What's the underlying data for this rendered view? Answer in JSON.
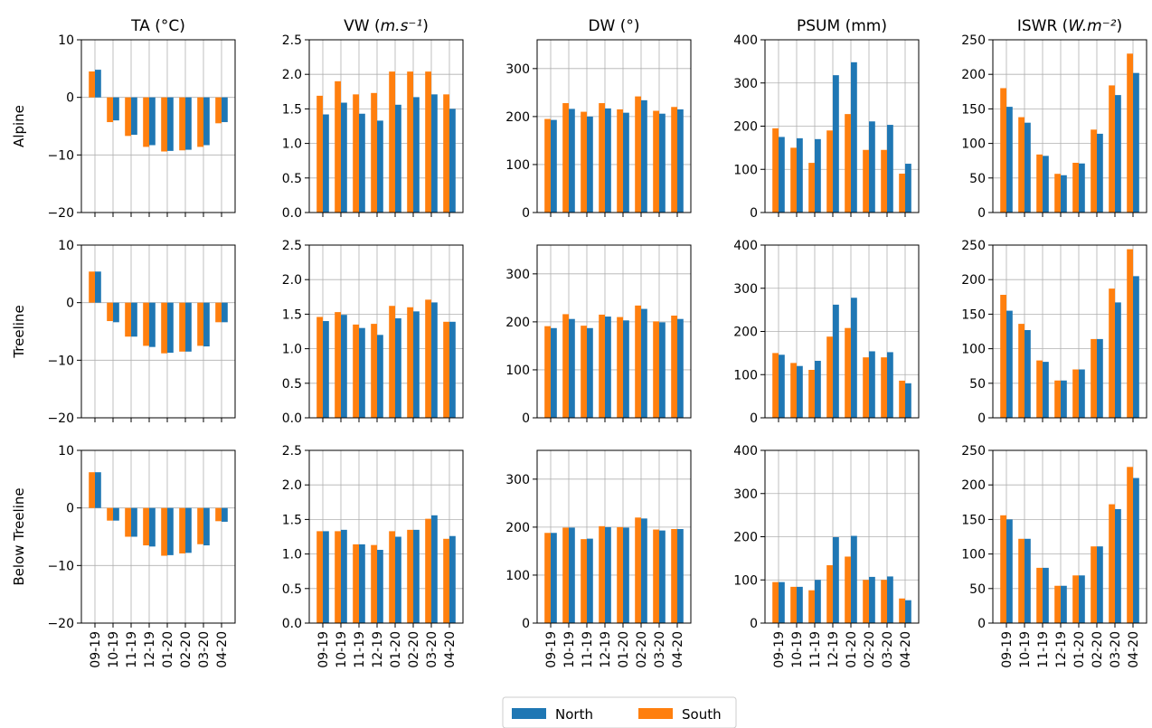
{
  "figure": {
    "row_labels": [
      "Alpine",
      "Treeline",
      "Below Treeline"
    ],
    "legend": {
      "entries": [
        {
          "name": "North",
          "color": "#1f77b4"
        },
        {
          "name": "South",
          "color": "#ff7f0e"
        }
      ],
      "placement": "bottom-center"
    }
  },
  "chart_data": [
    {
      "type": "bar",
      "variable": "TA",
      "title_main": "TA (°C)",
      "title_unit": "",
      "row": "Alpine",
      "categories": [
        "09-19",
        "10-19",
        "11-19",
        "12-19",
        "01-20",
        "02-20",
        "03-20",
        "04-20"
      ],
      "series": [
        {
          "name": "North",
          "values": [
            4.8,
            -4.0,
            -6.5,
            -8.3,
            -9.3,
            -9.1,
            -8.3,
            -4.3
          ]
        },
        {
          "name": "South",
          "values": [
            4.5,
            -4.3,
            -6.7,
            -8.6,
            -9.4,
            -9.2,
            -8.6,
            -4.5
          ]
        }
      ],
      "ylim": [
        -20,
        10
      ],
      "yticks": [
        -20,
        -10,
        0,
        10
      ],
      "grid": true,
      "show_xticklabels": false
    },
    {
      "type": "bar",
      "variable": "VW",
      "title_main": "VW (",
      "title_unit": "m.s⁻¹",
      "row": "Alpine",
      "categories": [
        "09-19",
        "10-19",
        "11-19",
        "12-19",
        "01-20",
        "02-20",
        "03-20",
        "04-20"
      ],
      "series": [
        {
          "name": "North",
          "values": [
            1.42,
            1.59,
            1.43,
            1.33,
            1.56,
            1.67,
            1.71,
            1.5
          ]
        },
        {
          "name": "South",
          "values": [
            1.69,
            1.9,
            1.71,
            1.73,
            2.04,
            2.04,
            2.04,
            1.71
          ]
        }
      ],
      "ylim": [
        0,
        2.5
      ],
      "yticks": [
        0,
        0.5,
        1,
        1.5,
        2,
        2.5
      ],
      "grid": true,
      "show_xticklabels": false
    },
    {
      "type": "bar",
      "variable": "DW",
      "title_main": "DW (°)",
      "title_unit": "",
      "row": "Alpine",
      "categories": [
        "09-19",
        "10-19",
        "11-19",
        "12-19",
        "01-20",
        "02-20",
        "03-20",
        "04-20"
      ],
      "series": [
        {
          "name": "North",
          "values": [
            193,
            216,
            200,
            217,
            208,
            234,
            206,
            215
          ]
        },
        {
          "name": "South",
          "values": [
            195,
            228,
            210,
            228,
            215,
            242,
            212,
            220
          ]
        }
      ],
      "ylim": [
        0,
        360
      ],
      "yticks": [
        0,
        100,
        200,
        300
      ],
      "grid": true,
      "show_xticklabels": false
    },
    {
      "type": "bar",
      "variable": "PSUM",
      "title_main": "PSUM (mm)",
      "title_unit": "",
      "row": "Alpine",
      "categories": [
        "09-19",
        "10-19",
        "11-19",
        "12-19",
        "01-20",
        "02-20",
        "03-20",
        "04-20"
      ],
      "series": [
        {
          "name": "North",
          "values": [
            175,
            172,
            170,
            318,
            348,
            211,
            203,
            113
          ]
        },
        {
          "name": "South",
          "values": [
            195,
            150,
            115,
            190,
            228,
            145,
            145,
            90
          ]
        }
      ],
      "ylim": [
        0,
        400
      ],
      "yticks": [
        0,
        100,
        200,
        300,
        400
      ],
      "grid": true,
      "show_xticklabels": false
    },
    {
      "type": "bar",
      "variable": "ISWR",
      "title_main": "ISWR (",
      "title_unit": "W.m⁻²",
      "row": "Alpine",
      "categories": [
        "09-19",
        "10-19",
        "11-19",
        "12-19",
        "01-20",
        "02-20",
        "03-20",
        "04-20"
      ],
      "series": [
        {
          "name": "North",
          "values": [
            153,
            130,
            82,
            54,
            71,
            114,
            170,
            202
          ]
        },
        {
          "name": "South",
          "values": [
            180,
            138,
            84,
            56,
            72,
            120,
            184,
            230
          ]
        }
      ],
      "ylim": [
        0,
        250
      ],
      "yticks": [
        0,
        50,
        100,
        150,
        200,
        250
      ],
      "grid": true,
      "show_xticklabels": false
    },
    {
      "type": "bar",
      "variable": "TA",
      "title_main": "",
      "title_unit": "",
      "row": "Treeline",
      "categories": [
        "09-19",
        "10-19",
        "11-19",
        "12-19",
        "01-20",
        "02-20",
        "03-20",
        "04-20"
      ],
      "series": [
        {
          "name": "North",
          "values": [
            5.4,
            -3.4,
            -5.9,
            -7.7,
            -8.7,
            -8.5,
            -7.6,
            -3.4
          ]
        },
        {
          "name": "South",
          "values": [
            5.4,
            -3.2,
            -5.9,
            -7.5,
            -8.8,
            -8.5,
            -7.5,
            -3.4
          ]
        }
      ],
      "ylim": [
        -20,
        10
      ],
      "yticks": [
        -20,
        -10,
        0,
        10
      ],
      "grid": true,
      "show_xticklabels": false
    },
    {
      "type": "bar",
      "variable": "VW",
      "title_main": "",
      "title_unit": "",
      "row": "Treeline",
      "categories": [
        "09-19",
        "10-19",
        "11-19",
        "12-19",
        "01-20",
        "02-20",
        "03-20",
        "04-20"
      ],
      "series": [
        {
          "name": "North",
          "values": [
            1.4,
            1.49,
            1.3,
            1.2,
            1.44,
            1.54,
            1.67,
            1.39
          ]
        },
        {
          "name": "South",
          "values": [
            1.46,
            1.53,
            1.35,
            1.36,
            1.62,
            1.6,
            1.71,
            1.39
          ]
        }
      ],
      "ylim": [
        0,
        2.5
      ],
      "yticks": [
        0,
        0.5,
        1,
        1.5,
        2,
        2.5
      ],
      "grid": true,
      "show_xticklabels": false
    },
    {
      "type": "bar",
      "variable": "DW",
      "title_main": "",
      "title_unit": "",
      "row": "Treeline",
      "categories": [
        "09-19",
        "10-19",
        "11-19",
        "12-19",
        "01-20",
        "02-20",
        "03-20",
        "04-20"
      ],
      "series": [
        {
          "name": "North",
          "values": [
            187,
            206,
            187,
            211,
            203,
            227,
            199,
            206
          ]
        },
        {
          "name": "South",
          "values": [
            191,
            216,
            192,
            215,
            210,
            234,
            201,
            213
          ]
        }
      ],
      "ylim": [
        0,
        360
      ],
      "yticks": [
        0,
        100,
        200,
        300
      ],
      "grid": true,
      "show_xticklabels": false
    },
    {
      "type": "bar",
      "variable": "PSUM",
      "title_main": "",
      "title_unit": "",
      "row": "Treeline",
      "categories": [
        "09-19",
        "10-19",
        "11-19",
        "12-19",
        "01-20",
        "02-20",
        "03-20",
        "04-20"
      ],
      "series": [
        {
          "name": "North",
          "values": [
            146,
            120,
            132,
            262,
            278,
            154,
            152,
            80
          ]
        },
        {
          "name": "South",
          "values": [
            150,
            127,
            111,
            188,
            208,
            140,
            140,
            86
          ]
        }
      ],
      "ylim": [
        0,
        400
      ],
      "yticks": [
        0,
        100,
        200,
        300,
        400
      ],
      "grid": true,
      "show_xticklabels": false
    },
    {
      "type": "bar",
      "variable": "ISWR",
      "title_main": "",
      "title_unit": "",
      "row": "Treeline",
      "categories": [
        "09-19",
        "10-19",
        "11-19",
        "12-19",
        "01-20",
        "02-20",
        "03-20",
        "04-20"
      ],
      "series": [
        {
          "name": "North",
          "values": [
            155,
            127,
            81,
            54,
            70,
            114,
            167,
            205
          ]
        },
        {
          "name": "South",
          "values": [
            178,
            136,
            83,
            54,
            70,
            114,
            187,
            244
          ]
        }
      ],
      "ylim": [
        0,
        250
      ],
      "yticks": [
        0,
        50,
        100,
        150,
        200,
        250
      ],
      "grid": true,
      "show_xticklabels": false
    },
    {
      "type": "bar",
      "variable": "TA",
      "title_main": "",
      "title_unit": "",
      "row": "Below Treeline",
      "categories": [
        "09-19",
        "10-19",
        "11-19",
        "12-19",
        "01-20",
        "02-20",
        "03-20",
        "04-20"
      ],
      "series": [
        {
          "name": "North",
          "values": [
            6.2,
            -2.2,
            -5.0,
            -6.7,
            -8.2,
            -7.8,
            -6.5,
            -2.4
          ]
        },
        {
          "name": "South",
          "values": [
            6.2,
            -2.2,
            -5.0,
            -6.5,
            -8.3,
            -7.9,
            -6.3,
            -2.3
          ]
        }
      ],
      "ylim": [
        -20,
        10
      ],
      "yticks": [
        -20,
        -10,
        0,
        10
      ],
      "grid": true,
      "show_xticklabels": true
    },
    {
      "type": "bar",
      "variable": "VW",
      "title_main": "",
      "title_unit": "",
      "row": "Below Treeline",
      "categories": [
        "09-19",
        "10-19",
        "11-19",
        "12-19",
        "01-20",
        "02-20",
        "03-20",
        "04-20"
      ],
      "series": [
        {
          "name": "North",
          "values": [
            1.33,
            1.35,
            1.14,
            1.06,
            1.25,
            1.35,
            1.56,
            1.26
          ]
        },
        {
          "name": "South",
          "values": [
            1.33,
            1.33,
            1.14,
            1.13,
            1.33,
            1.35,
            1.51,
            1.22
          ]
        }
      ],
      "ylim": [
        0,
        2.5
      ],
      "yticks": [
        0,
        0.5,
        1,
        1.5,
        2,
        2.5
      ],
      "grid": true,
      "show_xticklabels": true
    },
    {
      "type": "bar",
      "variable": "DW",
      "title_main": "",
      "title_unit": "",
      "row": "Below Treeline",
      "categories": [
        "09-19",
        "10-19",
        "11-19",
        "12-19",
        "01-20",
        "02-20",
        "03-20",
        "04-20"
      ],
      "series": [
        {
          "name": "North",
          "values": [
            188,
            199,
            176,
            200,
            199,
            218,
            193,
            196
          ]
        },
        {
          "name": "South",
          "values": [
            188,
            199,
            175,
            202,
            200,
            220,
            195,
            196
          ]
        }
      ],
      "ylim": [
        0,
        360
      ],
      "yticks": [
        0,
        100,
        200,
        300
      ],
      "grid": true,
      "show_xticklabels": true
    },
    {
      "type": "bar",
      "variable": "PSUM",
      "title_main": "",
      "title_unit": "",
      "row": "Below Treeline",
      "categories": [
        "09-19",
        "10-19",
        "11-19",
        "12-19",
        "01-20",
        "02-20",
        "03-20",
        "04-20"
      ],
      "series": [
        {
          "name": "North",
          "values": [
            95,
            84,
            100,
            199,
            202,
            107,
            108,
            53
          ]
        },
        {
          "name": "South",
          "values": [
            95,
            84,
            76,
            134,
            154,
            100,
            100,
            57
          ]
        }
      ],
      "ylim": [
        0,
        400
      ],
      "yticks": [
        0,
        100,
        200,
        300,
        400
      ],
      "grid": true,
      "show_xticklabels": true
    },
    {
      "type": "bar",
      "variable": "ISWR",
      "title_main": "",
      "title_unit": "",
      "row": "Below Treeline",
      "categories": [
        "09-19",
        "10-19",
        "11-19",
        "12-19",
        "01-20",
        "02-20",
        "03-20",
        "04-20"
      ],
      "series": [
        {
          "name": "North",
          "values": [
            150,
            122,
            80,
            54,
            69,
            111,
            165,
            210
          ]
        },
        {
          "name": "South",
          "values": [
            156,
            122,
            80,
            54,
            69,
            111,
            172,
            226
          ]
        }
      ],
      "ylim": [
        0,
        250
      ],
      "yticks": [
        0,
        50,
        100,
        150,
        200,
        250
      ],
      "grid": true,
      "show_xticklabels": true
    }
  ]
}
